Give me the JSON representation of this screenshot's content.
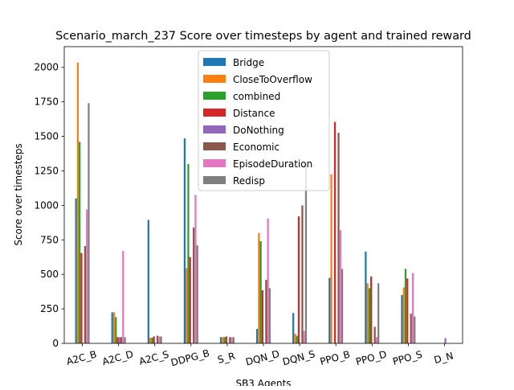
{
  "chart_data": {
    "type": "bar",
    "title": "Scenario_march_237 Score over timesteps by agent and trained reward",
    "xlabel": "SB3 Agents",
    "ylabel": "Score over timesteps",
    "ylim": [
      0,
      2150
    ],
    "yticks": [
      0,
      250,
      500,
      750,
      1000,
      1250,
      1500,
      1750,
      2000
    ],
    "grid": false,
    "legend_position": "top-center",
    "categories": [
      "A2C_B",
      "A2C_D",
      "A2C_S",
      "DDPG_B",
      "S_R",
      "DQN_D",
      "DQN_S",
      "PPO_B",
      "PPO_D",
      "PPO_S",
      "D_N"
    ],
    "series": [
      {
        "name": "Bridge",
        "color": "#1f77b4",
        "values": [
          1050,
          225,
          895,
          1485,
          45,
          105,
          220,
          475,
          665,
          350,
          0
        ]
      },
      {
        "name": "CloseToOverflow",
        "color": "#ff7f0e",
        "values": [
          2035,
          225,
          40,
          545,
          45,
          800,
          70,
          1225,
          435,
          405,
          0
        ]
      },
      {
        "name": "combined",
        "color": "#2ca02c",
        "values": [
          1460,
          190,
          40,
          1300,
          45,
          740,
          55,
          0,
          400,
          540,
          0
        ]
      },
      {
        "name": "Distance",
        "color": "#d62728",
        "values": [
          655,
          45,
          50,
          625,
          50,
          385,
          920,
          1605,
          485,
          470,
          0
        ]
      },
      {
        "name": "DoNothing",
        "color": "#9467bd",
        "values": [
          0,
          45,
          0,
          0,
          0,
          0,
          0,
          0,
          0,
          0,
          38
        ]
      },
      {
        "name": "Economic",
        "color": "#8c564b",
        "values": [
          705,
          45,
          55,
          840,
          45,
          460,
          1000,
          1525,
          120,
          215,
          0
        ]
      },
      {
        "name": "EpisodeDuration",
        "color": "#e377c2",
        "values": [
          970,
          670,
          50,
          1075,
          45,
          905,
          90,
          820,
          45,
          510,
          0
        ]
      },
      {
        "name": "Redisp",
        "color": "#7f7f7f",
        "values": [
          1740,
          45,
          50,
          710,
          45,
          400,
          1300,
          540,
          435,
          195,
          0
        ]
      }
    ]
  }
}
